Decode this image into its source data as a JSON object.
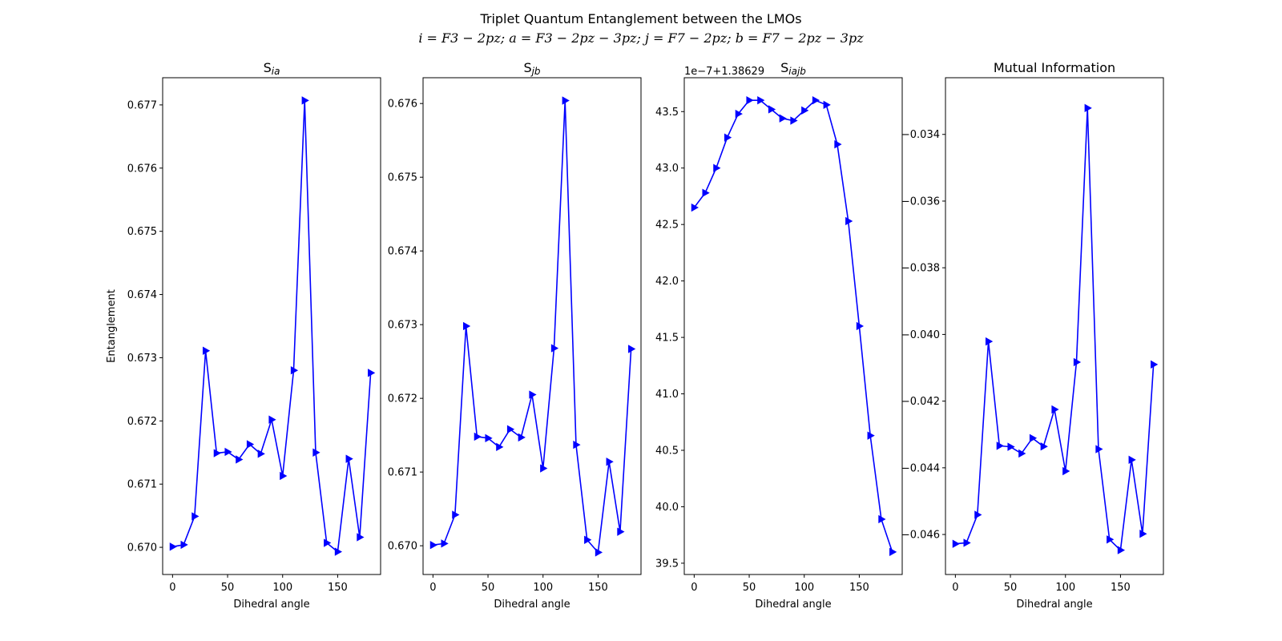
{
  "figure": {
    "title": "Triplet Quantum Entanglement between the LMOs",
    "subtitle": "i = F3 − 2pz; a = F3 − 2pz − 3pz; j = F7 − 2pz; b = F7 − 2pz − 3pz",
    "line_color": "#0000ff"
  },
  "chart_data": [
    {
      "type": "line",
      "title_main": "S",
      "title_sub": "ia",
      "xlabel": "Dihedral angle",
      "ylabel": "Entanglement",
      "marker": "triangle-right",
      "x": [
        0,
        10,
        20,
        30,
        40,
        50,
        60,
        70,
        80,
        90,
        100,
        110,
        120,
        130,
        140,
        150,
        160,
        170,
        180
      ],
      "y": [
        0.67001,
        0.67004,
        0.67049,
        0.67311,
        0.67149,
        0.67151,
        0.67139,
        0.67163,
        0.67148,
        0.67202,
        0.67113,
        0.6728,
        0.67707,
        0.6715,
        0.67007,
        0.66993,
        0.6714,
        0.67016,
        0.67276
      ],
      "xlim": [
        -9,
        189
      ],
      "ylim": [
        0.66957,
        0.67743
      ],
      "xticks": [
        0,
        50,
        100,
        150
      ],
      "xtick_labels": [
        "0",
        "50",
        "100",
        "150"
      ],
      "yticks": [
        0.67,
        0.671,
        0.672,
        0.673,
        0.674,
        0.675,
        0.676,
        0.677
      ],
      "ytick_labels": [
        "0.670",
        "0.671",
        "0.672",
        "0.673",
        "0.674",
        "0.675",
        "0.676",
        "0.677"
      ]
    },
    {
      "type": "line",
      "title_main": "S",
      "title_sub": "jb",
      "xlabel": "Dihedral angle",
      "ylabel": "",
      "marker": "triangle-right",
      "x": [
        0,
        10,
        20,
        30,
        40,
        50,
        60,
        70,
        80,
        90,
        100,
        110,
        120,
        130,
        140,
        150,
        160,
        170,
        180
      ],
      "y": [
        0.67001,
        0.67003,
        0.67042,
        0.67298,
        0.67148,
        0.67146,
        0.67134,
        0.67158,
        0.67147,
        0.67205,
        0.67105,
        0.67268,
        0.67604,
        0.67137,
        0.67008,
        0.66991,
        0.67114,
        0.67019,
        0.67267
      ],
      "xlim": [
        -9,
        189
      ],
      "ylim": [
        0.66961,
        0.67635
      ],
      "xticks": [
        0,
        50,
        100,
        150
      ],
      "xtick_labels": [
        "0",
        "50",
        "100",
        "150"
      ],
      "yticks": [
        0.67,
        0.671,
        0.672,
        0.673,
        0.674,
        0.675,
        0.676
      ],
      "ytick_labels": [
        "0.670",
        "0.671",
        "0.672",
        "0.673",
        "0.674",
        "0.675",
        "0.676"
      ]
    },
    {
      "type": "line",
      "title_main": "S",
      "title_sub": "iajb",
      "xlabel": "Dihedral angle",
      "ylabel": "",
      "offset_label": "1e−7+1.38629",
      "marker": "triangle-right",
      "x": [
        0,
        10,
        20,
        30,
        40,
        50,
        60,
        70,
        80,
        90,
        100,
        110,
        120,
        130,
        140,
        150,
        160,
        170,
        180
      ],
      "y": [
        42.65,
        42.78,
        43.0,
        43.27,
        43.48,
        43.6,
        43.6,
        43.52,
        43.44,
        43.42,
        43.51,
        43.6,
        43.56,
        43.21,
        42.53,
        41.6,
        40.63,
        39.89,
        39.6
      ],
      "xlim": [
        -9,
        189
      ],
      "ylim": [
        39.4,
        43.8
      ],
      "xticks": [
        0,
        50,
        100,
        150
      ],
      "xtick_labels": [
        "0",
        "50",
        "100",
        "150"
      ],
      "yticks": [
        39.5,
        40.0,
        40.5,
        41.0,
        41.5,
        42.0,
        42.5,
        43.0,
        43.5
      ],
      "ytick_labels": [
        "39.5",
        "40.0",
        "40.5",
        "41.0",
        "41.5",
        "42.0",
        "42.5",
        "43.0",
        "43.5"
      ]
    },
    {
      "type": "line",
      "title_main": "Mutual Information",
      "title_sub": "",
      "xlabel": "Dihedral angle",
      "ylabel": "",
      "marker": "triangle-right",
      "x": [
        0,
        10,
        20,
        30,
        40,
        50,
        60,
        70,
        80,
        90,
        100,
        110,
        120,
        130,
        140,
        150,
        160,
        170,
        180
      ],
      "y": [
        -0.04628,
        -0.04625,
        -0.04541,
        -0.04021,
        -0.04334,
        -0.04337,
        -0.04357,
        -0.04311,
        -0.04336,
        -0.04225,
        -0.0441,
        -0.04083,
        -0.03321,
        -0.04344,
        -0.04615,
        -0.04647,
        -0.04376,
        -0.04598,
        -0.0409
      ],
      "xlim": [
        -9,
        189
      ],
      "ylim": [
        -0.0472,
        -0.0323
      ],
      "xticks": [
        0,
        50,
        100,
        150
      ],
      "xtick_labels": [
        "0",
        "50",
        "100",
        "150"
      ],
      "yticks": [
        -0.046,
        -0.044,
        -0.042,
        -0.04,
        -0.038,
        -0.036,
        -0.034
      ],
      "ytick_labels": [
        "−0.046",
        "−0.044",
        "−0.042",
        "−0.040",
        "−0.038",
        "−0.036",
        "−0.034"
      ]
    }
  ]
}
